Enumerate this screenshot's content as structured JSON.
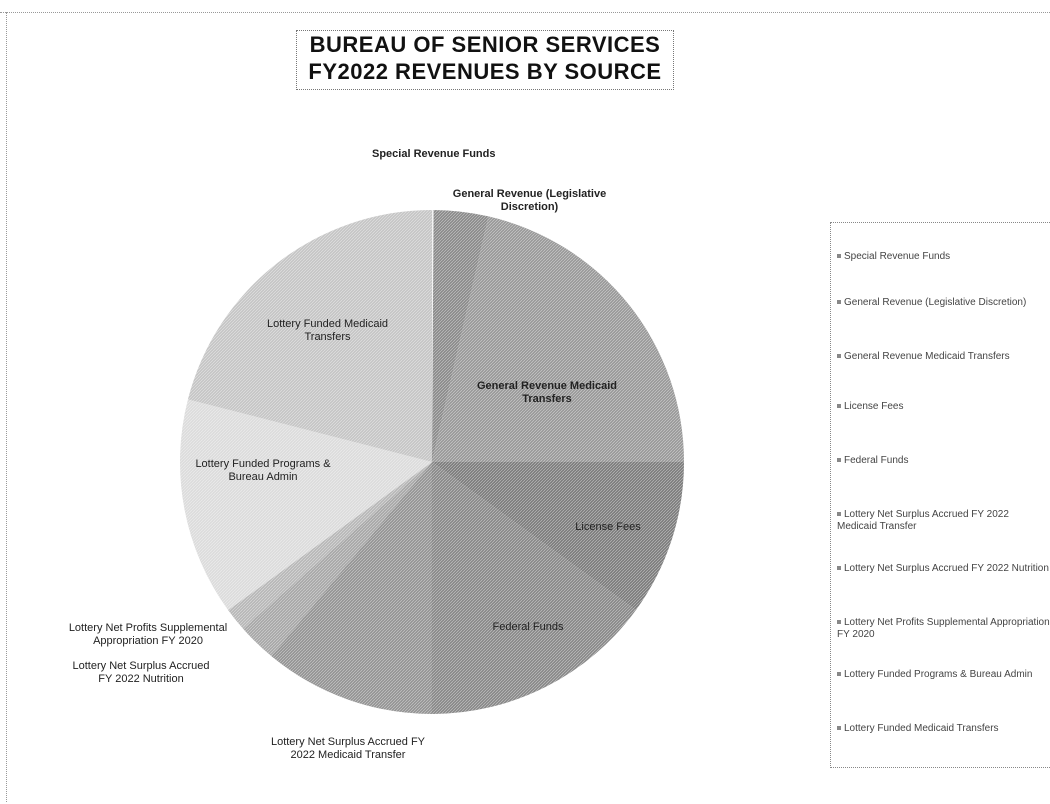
{
  "title": {
    "line1": "BUREAU OF SENIOR SERVICES",
    "line2": "FY2022 REVENUES BY SOURCE"
  },
  "chart_data": {
    "type": "pie",
    "title": "BUREAU OF SENIOR SERVICES FY2022 REVENUES BY SOURCE",
    "legend_position": "right",
    "slices": [
      {
        "label": "Special Revenue Funds",
        "chart_label": "Special Revenue Funds",
        "value": 0.1
      },
      {
        "label": "General Revenue (Legislative Discretion)",
        "chart_label": "General Revenue (Legislative Discretion)",
        "value": 3.5
      },
      {
        "label": "General Revenue Medicaid Transfers",
        "chart_label": "General Revenue Medicaid Transfers",
        "value": 21.4
      },
      {
        "label": "License Fees",
        "chart_label": "License Fees",
        "value": 10.0
      },
      {
        "label": "Federal Funds",
        "chart_label": "Federal Funds",
        "value": 15.0
      },
      {
        "label": "Lottery Net Surplus Accrued FY 2022 Medicaid Transfer",
        "chart_label": "Lottery Net Surplus Accrued FY 2022 Medicaid Transfer",
        "value": 11.0
      },
      {
        "label": "Lottery Net Surplus Accrued FY 2022 Nutrition",
        "chart_label": "Lottery Net Surplus Accrued FY 2022 Nutrition",
        "value": 2.5
      },
      {
        "label": "Lottery Net Profits Supplemental Appropriation FY 2020",
        "chart_label": "Lottery Net Profits Supplemental Appropriation FY 2020",
        "value": 1.5
      },
      {
        "label": "Lottery Funded Programs & Bureau Admin",
        "chart_label": "Lottery Funded Programs & Bureau Admin",
        "value": 14.0
      },
      {
        "label": "Lottery Funded Medicaid Transfers",
        "chart_label": "Lottery Funded Medicaid Transfers",
        "value": 21.0
      }
    ],
    "colors": [
      "#f2f2f2",
      "#8c8c8c",
      "#9a9a9a",
      "#7e7e7e",
      "#8a8a8a",
      "#959595",
      "#a8a8a8",
      "#b8b8b8",
      "#dcdcdc",
      "#c6c6c6"
    ]
  }
}
